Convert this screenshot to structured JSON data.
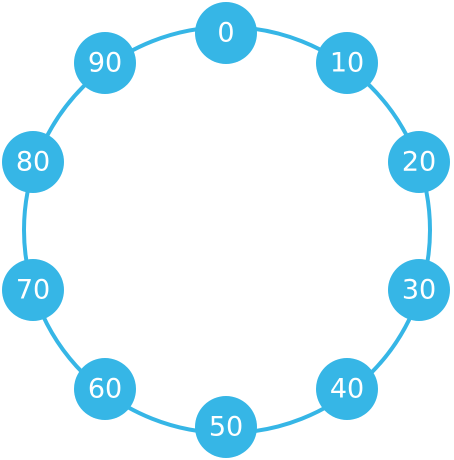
{
  "colors": {
    "accent": "#36b6e6",
    "label": "#ffffff",
    "background": "#ffffff"
  },
  "nodes": [
    {
      "label": "0"
    },
    {
      "label": "10"
    },
    {
      "label": "20"
    },
    {
      "label": "30"
    },
    {
      "label": "40"
    },
    {
      "label": "50"
    },
    {
      "label": "60"
    },
    {
      "label": "70"
    },
    {
      "label": "80"
    },
    {
      "label": "90"
    }
  ]
}
